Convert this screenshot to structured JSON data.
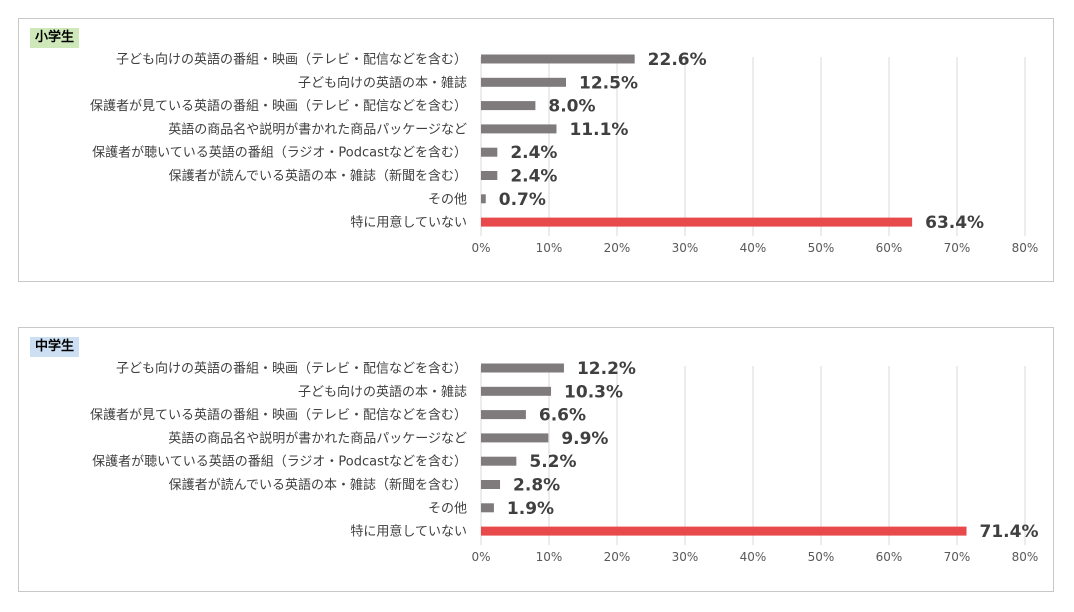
{
  "chart_data": [
    {
      "type": "bar",
      "title": "小学生",
      "title_bg": "#cfe8b9",
      "orientation": "horizontal",
      "categories": [
        "子ども向けの英語の番組・映画（テレビ・配信などを含む）",
        "子ども向けの英語の本・雑誌",
        "保護者が見ている英語の番組・映画（テレビ・配信などを含む）",
        "英語の商品名や説明が書かれた商品パッケージなど",
        "保護者が聴いている英語の番組（ラジオ・Podcastなどを含む）",
        "保護者が読んでいる英語の本・雑誌（新聞を含む）",
        "その他",
        "特に用意していない"
      ],
      "values": [
        22.6,
        12.5,
        8.0,
        11.1,
        2.4,
        2.4,
        0.7,
        63.4
      ],
      "value_labels": [
        "22.6%",
        "12.5%",
        "8.0%",
        "11.1%",
        "2.4%",
        "2.4%",
        "0.7%",
        "63.4%"
      ],
      "xlim": [
        0,
        80
      ],
      "xticks": [
        "0%",
        "10%",
        "20%",
        "30%",
        "40%",
        "50%",
        "60%",
        "70%",
        "80%"
      ],
      "grid": true,
      "bar_color": "#7f7b7c",
      "highlight_color": "#e8494b",
      "highlight_index": 7
    },
    {
      "type": "bar",
      "title": "中学生",
      "title_bg": "#cddff2",
      "orientation": "horizontal",
      "categories": [
        "子ども向けの英語の番組・映画（テレビ・配信などを含む）",
        "子ども向けの英語の本・雑誌",
        "保護者が見ている英語の番組・映画（テレビ・配信などを含む）",
        "英語の商品名や説明が書かれた商品パッケージなど",
        "保護者が聴いている英語の番組（ラジオ・Podcastなどを含む）",
        "保護者が読んでいる英語の本・雑誌（新聞を含む）",
        "その他",
        "特に用意していない"
      ],
      "values": [
        12.2,
        10.3,
        6.6,
        9.9,
        5.2,
        2.8,
        1.9,
        71.4
      ],
      "value_labels": [
        "12.2%",
        "10.3%",
        "6.6%",
        "9.9%",
        "5.2%",
        "2.8%",
        "1.9%",
        "71.4%"
      ],
      "xlim": [
        0,
        80
      ],
      "xticks": [
        "0%",
        "10%",
        "20%",
        "30%",
        "40%",
        "50%",
        "60%",
        "70%",
        "80%"
      ],
      "grid": true,
      "bar_color": "#7f7b7c",
      "highlight_color": "#e8494b",
      "highlight_index": 7
    }
  ]
}
